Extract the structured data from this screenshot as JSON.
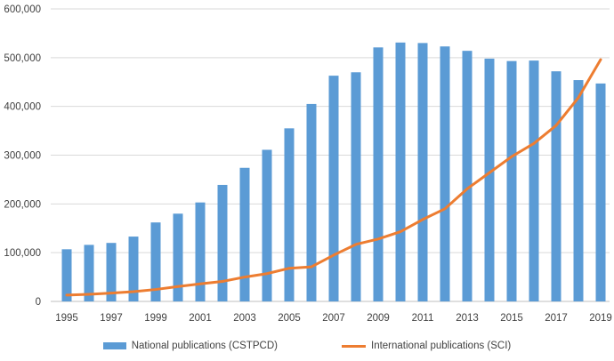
{
  "chart_data": {
    "type": "bar+line combo",
    "categories": [
      "1995",
      "1996",
      "1997",
      "1998",
      "1999",
      "2000",
      "2001",
      "2002",
      "2003",
      "2004",
      "2005",
      "2006",
      "2007",
      "2008",
      "2009",
      "2010",
      "2011",
      "2012",
      "2013",
      "2014",
      "2015",
      "2016",
      "2017",
      "2018",
      "2019"
    ],
    "series": [
      {
        "name": "National publications (CSTPCD)",
        "type": "bar",
        "color": "#5B9BD5",
        "values": [
          107000,
          116000,
          120000,
          133000,
          162000,
          180000,
          203000,
          239000,
          274000,
          311000,
          355000,
          405000,
          463000,
          470000,
          521000,
          531000,
          530000,
          523000,
          514000,
          498000,
          493000,
          494000,
          472000,
          454000,
          447000
        ]
      },
      {
        "name": "International publications (SCI)",
        "type": "line",
        "color": "#ED7D31",
        "values": [
          13000,
          14500,
          17000,
          20000,
          24500,
          30500,
          36000,
          41000,
          50000,
          57000,
          68000,
          71000,
          95000,
          117000,
          128000,
          143000,
          168000,
          190000,
          231000,
          264000,
          297000,
          324000,
          361000,
          418000,
          496000
        ]
      }
    ],
    "title": "",
    "xlabel": "",
    "ylabel": "",
    "ylim": [
      0,
      600000
    ],
    "ytick_step": 100000,
    "ytick_labels": [
      "0",
      "100,000",
      "200,000",
      "300,000",
      "400,000",
      "500,000",
      "600,000"
    ],
    "xtick_labels": [
      "1995",
      "1997",
      "1999",
      "2001",
      "2003",
      "2005",
      "2007",
      "2009",
      "2011",
      "2013",
      "2015",
      "2017",
      "2019"
    ],
    "grid": "horizontal",
    "legend_position": "bottom",
    "colors": {
      "grid": "#D9D9D9",
      "axis_line": "#BFBFBF",
      "tick_text": "#404040",
      "background": "#FFFFFF"
    }
  }
}
